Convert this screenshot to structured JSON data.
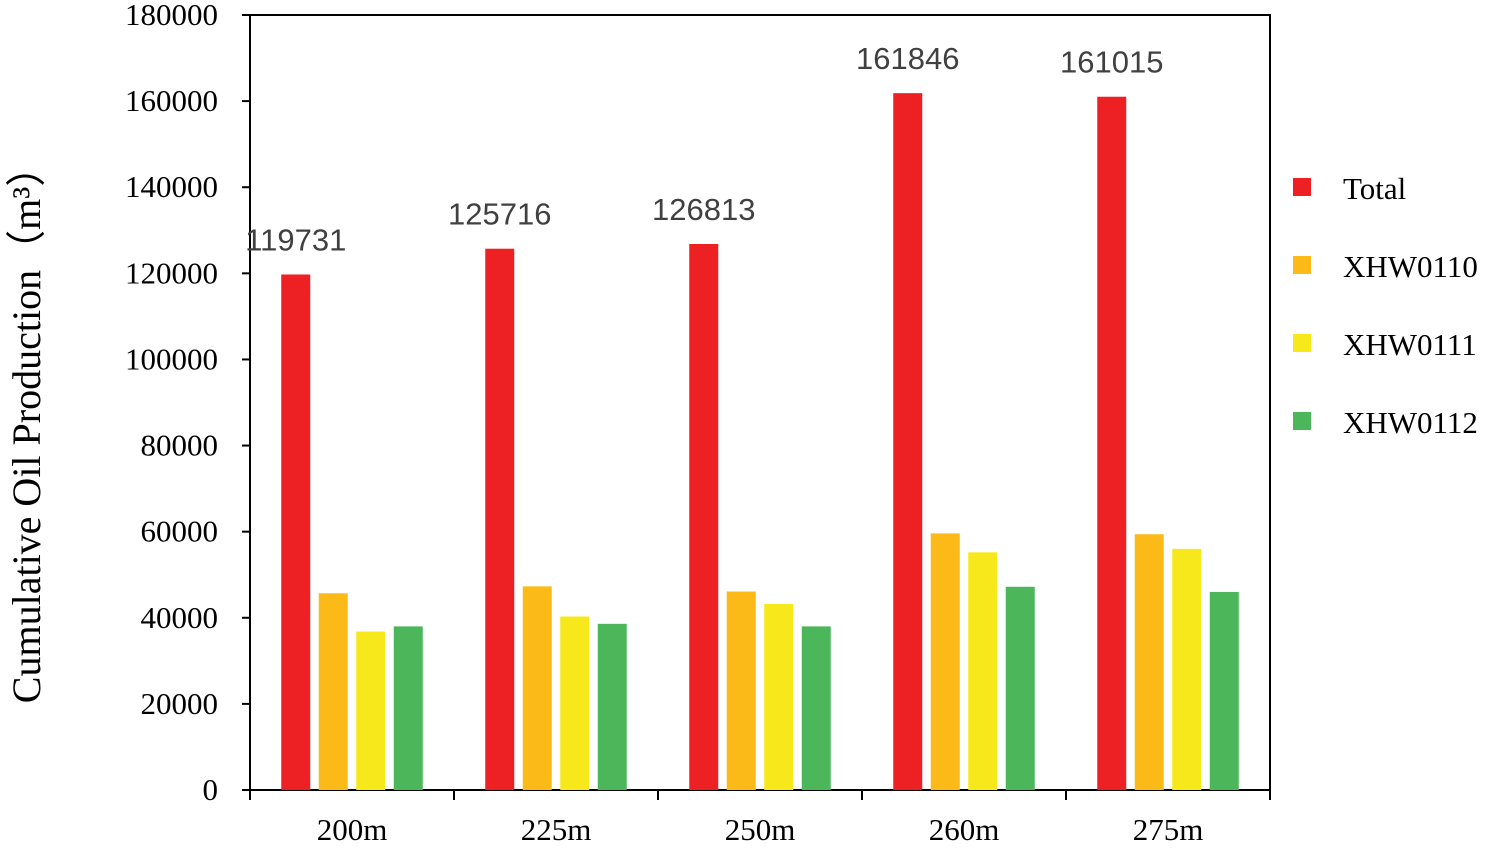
{
  "chart_data": {
    "type": "bar",
    "title": "",
    "xlabel": "",
    "ylabel": "Cumulative Oil Production（m³）",
    "ylim": [
      0,
      180000
    ],
    "yticks": [
      0,
      20000,
      40000,
      60000,
      80000,
      100000,
      120000,
      140000,
      160000,
      180000
    ],
    "categories": [
      "200m",
      "225m",
      "250m",
      "260m",
      "275m"
    ],
    "series": [
      {
        "name": "Total",
        "color": "#ed2024",
        "values": [
          119731,
          125716,
          126813,
          161846,
          161015
        ]
      },
      {
        "name": "XHW0110",
        "color": "#fbba17",
        "values": [
          45700,
          47300,
          46100,
          59600,
          59400
        ]
      },
      {
        "name": "XHW0111",
        "color": "#f6e81a",
        "values": [
          36800,
          40300,
          43200,
          55200,
          56000
        ]
      },
      {
        "name": "XHW0112",
        "color": "#4cb75a",
        "values": [
          38000,
          38600,
          38000,
          47200,
          46000
        ]
      }
    ],
    "data_labels": [
      "119731",
      "125716",
      "126813",
      "161846",
      "161015"
    ],
    "legend_position": "right",
    "grid": false
  }
}
